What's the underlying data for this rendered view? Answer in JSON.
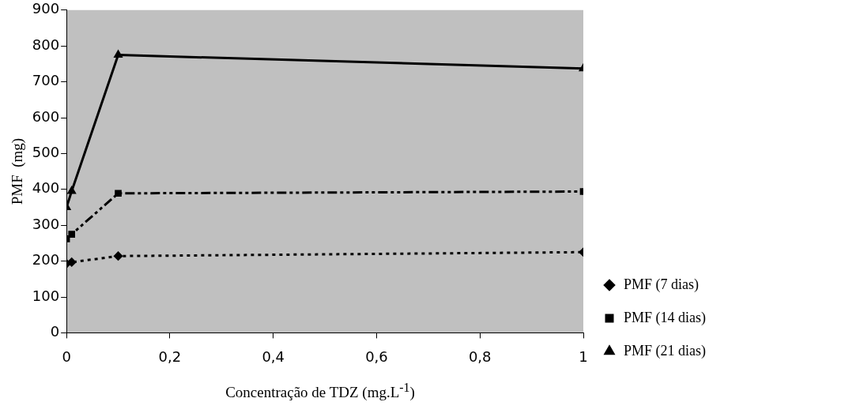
{
  "chart_data": {
    "type": "line",
    "xlabel": "Concentração de TDZ (mg.L$^{-1}$)",
    "ylabel": "PMF  (mg)",
    "x": [
      0,
      0.01,
      0.1,
      1
    ],
    "series": [
      {
        "name": "PMF (7 dias)",
        "color": "#000000",
        "values": [
          193,
          197,
          214,
          225
        ],
        "marker": "diamond",
        "line_style": "dotted"
      },
      {
        "name": "PMF (14 dias)",
        "color": "#000000",
        "values": [
          262,
          275,
          389,
          394
        ],
        "marker": "square",
        "line_style": "dashed"
      },
      {
        "name": "PMF (21 dias)",
        "color": "#000000",
        "values": [
          350,
          395,
          775,
          737
        ],
        "marker": "triangle",
        "line_style": "solid"
      }
    ],
    "xlim": [
      0,
      1
    ],
    "xticks": [
      0,
      {
        "value": 0.2,
        "label": "0,2"
      },
      {
        "value": 0.4,
        "label": "0,4"
      },
      {
        "value": 0.6,
        "label": "0,6"
      },
      {
        "value": 0.8,
        "label": "0,8"
      },
      1
    ],
    "ylim": [
      0,
      900
    ],
    "yticks": [
      0,
      100,
      200,
      300,
      400,
      500,
      600,
      700,
      800,
      900
    ],
    "grid": false,
    "legend": "right"
  }
}
